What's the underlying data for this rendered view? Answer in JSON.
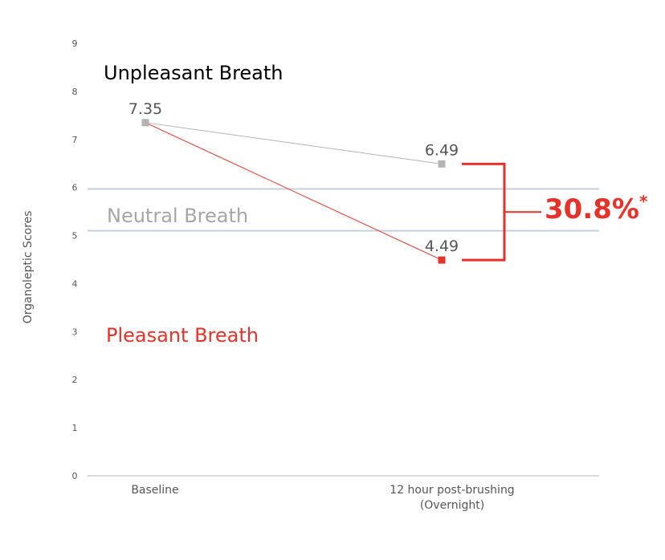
{
  "chart_data": {
    "type": "line",
    "ylabel": "Organoleptic Scores",
    "ylim": [
      0,
      9
    ],
    "yticks": [
      "0",
      "1",
      "2",
      "3",
      "4",
      "5",
      "6",
      "7",
      "8",
      "9"
    ],
    "categories": [
      "Baseline",
      "12 hour post-brushing\n(Overnight)"
    ],
    "category_lines": [
      [
        "Baseline"
      ],
      [
        "12 hour post-brushing",
        "(Overnight)"
      ]
    ],
    "series": [
      {
        "values": [
          7.35,
          6.49
        ],
        "labels": [
          "7.35",
          "6.49"
        ],
        "color": "#b3b3b3"
      },
      {
        "values": [
          7.35,
          4.49
        ],
        "labels": [
          "",
          "4.49"
        ],
        "color": "#e63228"
      }
    ],
    "reference_lines": [
      5.1,
      5.97
    ],
    "zones": [
      {
        "label": "Unpleasant Breath",
        "color": "#000000"
      },
      {
        "label": "Neutral Breath",
        "color": "#a6a6a6"
      },
      {
        "label": "Pleasant Breath",
        "color": "#e63228"
      }
    ],
    "annotation": {
      "text": "30.8%",
      "marker": "*",
      "color": "#e63228"
    },
    "reference_line_color": "#c3d1e0",
    "axis_color": "#c8c8c8",
    "grid": false
  }
}
